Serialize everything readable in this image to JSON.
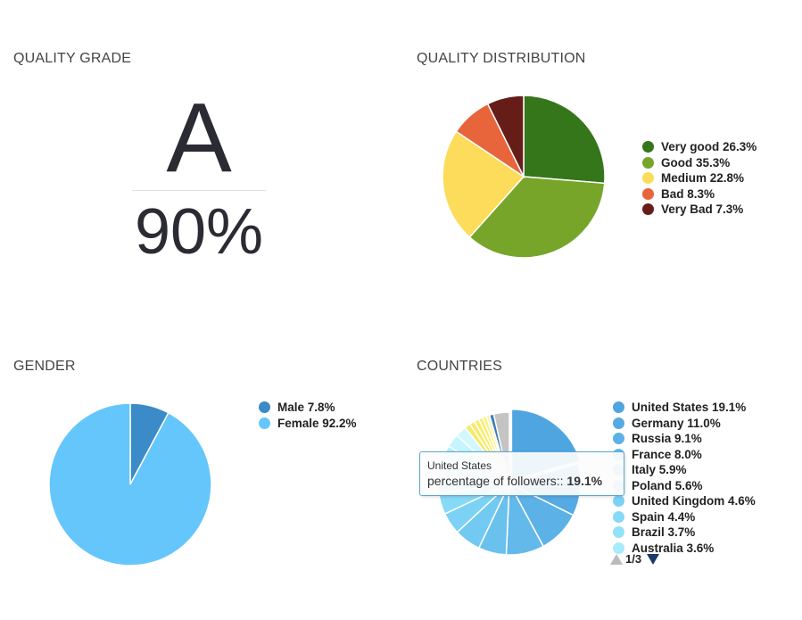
{
  "sections": {
    "quality_grade": "QUALITY GRADE",
    "quality_distribution": "QUALITY DISTRIBUTION",
    "gender": "GENDER",
    "countries": "COUNTRIES"
  },
  "grade": {
    "letter": "A",
    "percent": "90%"
  },
  "chart_data": [
    {
      "type": "pie",
      "title": "",
      "legend_position": "right",
      "series": [
        {
          "name": "Very good",
          "label": "Very good 26.3%",
          "value": 26.3,
          "color": "#35761a"
        },
        {
          "name": "Good",
          "label": "Good 35.3%",
          "value": 35.3,
          "color": "#76a52a"
        },
        {
          "name": "Medium",
          "label": "Medium 22.8%",
          "value": 22.8,
          "color": "#fcdc5a"
        },
        {
          "name": "Bad",
          "label": "Bad 8.3%",
          "value": 8.3,
          "color": "#e8643a"
        },
        {
          "name": "Very Bad",
          "label": "Very Bad 7.3%",
          "value": 7.3,
          "color": "#661d18"
        }
      ]
    },
    {
      "type": "pie",
      "title": "",
      "legend_position": "right",
      "series": [
        {
          "name": "Male",
          "label": "Male 7.8%",
          "value": 7.8,
          "color": "#3a8bc8"
        },
        {
          "name": "Female",
          "label": "Female 92.2%",
          "value": 92.2,
          "color": "#65c6fb"
        }
      ]
    },
    {
      "type": "pie",
      "title": "",
      "legend_position": "right",
      "series": [
        {
          "name": "United States",
          "label": "United States 19.1%",
          "value": 19.1,
          "color": "#4fa5e0"
        },
        {
          "name": "Germany",
          "label": "Germany 11.0%",
          "value": 11.0,
          "color": "#55aae3"
        },
        {
          "name": "Russia",
          "label": "Russia 9.1%",
          "value": 9.1,
          "color": "#5cb1e7"
        },
        {
          "name": "France",
          "label": "France 8.0%",
          "value": 8.0,
          "color": "#63b9ea"
        },
        {
          "name": "Italy",
          "label": "Italy 5.9%",
          "value": 5.9,
          "color": "#6ac1ee"
        },
        {
          "name": "Poland",
          "label": "Poland 5.6%",
          "value": 5.6,
          "color": "#72c9f1"
        },
        {
          "name": "United Kingdom",
          "label": "United Kingdom 4.6%",
          "value": 4.6,
          "color": "#7bd2f4"
        },
        {
          "name": "Spain",
          "label": "Spain 4.4%",
          "value": 4.4,
          "color": "#86daf7"
        },
        {
          "name": "Brazil",
          "label": "Brazil 3.7%",
          "value": 3.7,
          "color": "#91e2f9"
        },
        {
          "name": "Australia",
          "label": "Australia 3.6%",
          "value": 3.6,
          "color": "#a6ecfb"
        }
      ]
    }
  ],
  "countries_extra_slices": [
    {
      "value": 3.0,
      "color": "#b5f0fc"
    },
    {
      "value": 2.8,
      "color": "#c4f4fd"
    },
    {
      "value": 2.4,
      "color": "#d2f7fd"
    },
    {
      "value": 1.2,
      "color": "#f7e969"
    },
    {
      "value": 1.1,
      "color": "#f8ea6a"
    },
    {
      "value": 1.0,
      "color": "#f9ec70"
    },
    {
      "value": 0.9,
      "color": "#faee76"
    },
    {
      "value": 0.8,
      "color": "#fbf07d"
    },
    {
      "value": 0.7,
      "color": "#f4f4b0"
    },
    {
      "value": 0.9,
      "color": "#3d7bb8"
    },
    {
      "value": 3.3,
      "color": "#c4c4c4"
    }
  ],
  "countries_pager": {
    "text": "1/3"
  },
  "tooltip": {
    "title": "United States",
    "label": "percentage of followers:: ",
    "value": "19.1%"
  }
}
